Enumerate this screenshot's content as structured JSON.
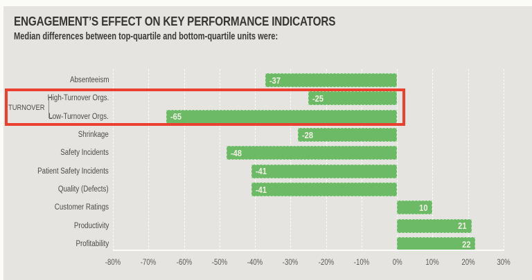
{
  "header": {
    "title": "ENGAGEMENT’S EFFECT ON KEY PERFORMANCE INDICATORS",
    "subtitle": "Median differences between top-quartile and bottom-quartile units were:"
  },
  "colors": {
    "background": "#e5e4e1",
    "page_edge": "#fbfbf8",
    "bar_green": "#6cba66",
    "highlight_red": "#e9402f",
    "title_text": "#383633",
    "label_text": "#4d4b49",
    "tick_text": "#5c5a57",
    "bar_value_text": "#f1efe4"
  },
  "chart_data": {
    "type": "bar",
    "orientation": "horizontal",
    "title": "ENGAGEMENT’S EFFECT ON KEY PERFORMANCE INDICATORS",
    "subtitle": "Median differences between top-quartile and bottom-quartile units were:",
    "categories": [
      "Absenteeism",
      "High-Turnover Orgs.",
      "Low-Turnover Orgs.",
      "Shrinkage",
      "Safety Incidents",
      "Patient Safety Incidents",
      "Quality (Defects)",
      "Customer Ratings",
      "Productivity",
      "Profitability"
    ],
    "values": [
      -37,
      -25,
      -65,
      -28,
      -48,
      -41,
      -41,
      10,
      21,
      22
    ],
    "value_labels": [
      "-37",
      "-25",
      "-65",
      "-28",
      "-48",
      "-41",
      "-41",
      "10",
      "21",
      "22"
    ],
    "unit": "%",
    "xlim": [
      -80,
      30
    ],
    "tick_values": [
      -80,
      -70,
      -60,
      -50,
      -40,
      -30,
      -20,
      -10,
      0,
      10,
      20,
      30
    ],
    "tick_labels": [
      "-80%",
      "-70%",
      "-60%",
      "-50%",
      "-40%",
      "-30%",
      "-20%",
      "-10%",
      "0%",
      "10%",
      "20%",
      "30%"
    ],
    "grid": "vertical-dashed",
    "legend": "none",
    "group": {
      "label": "TURNOVER",
      "member_indexes": [
        1,
        2
      ]
    },
    "highlight": {
      "shape": "box",
      "row_indexes": [
        1,
        2
      ]
    }
  }
}
